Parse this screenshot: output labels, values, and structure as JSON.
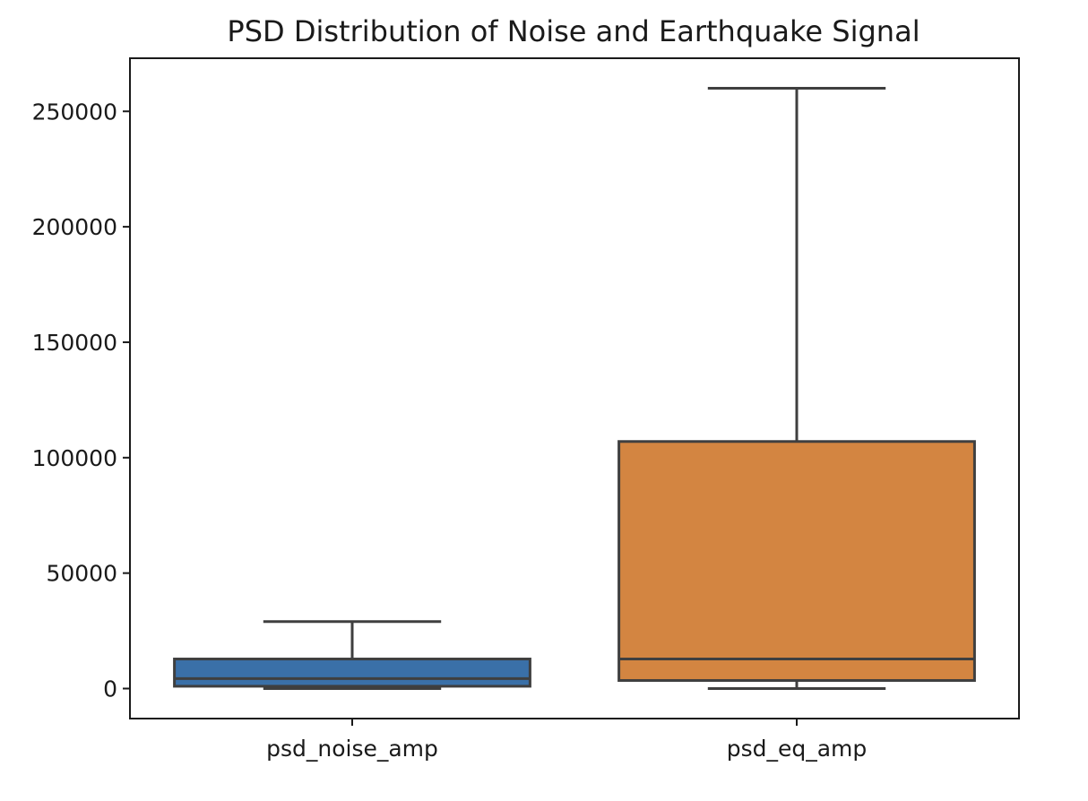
{
  "chart_data": {
    "type": "box",
    "title": "PSD Distribution of Noise and Earthquake Signal",
    "xlabel": "",
    "ylabel": "",
    "ylim": [
      -13000,
      273000
    ],
    "yticks": [
      0,
      50000,
      100000,
      150000,
      200000,
      250000
    ],
    "ytick_labels": [
      "0",
      "50000",
      "100000",
      "150000",
      "200000",
      "250000"
    ],
    "grid": false,
    "legend": "none",
    "categories": [
      "psd_noise_amp",
      "psd_eq_amp"
    ],
    "boxes": [
      {
        "label": "psd_noise_amp",
        "whisker_low": 0,
        "q1": 1000,
        "median": 4300,
        "q3": 12800,
        "whisker_high": 29000,
        "color": "#3a70a8"
      },
      {
        "label": "psd_eq_amp",
        "whisker_low": 0,
        "q1": 3500,
        "median": 12800,
        "q3": 107000,
        "whisker_high": 260000,
        "color": "#d38541"
      }
    ]
  }
}
